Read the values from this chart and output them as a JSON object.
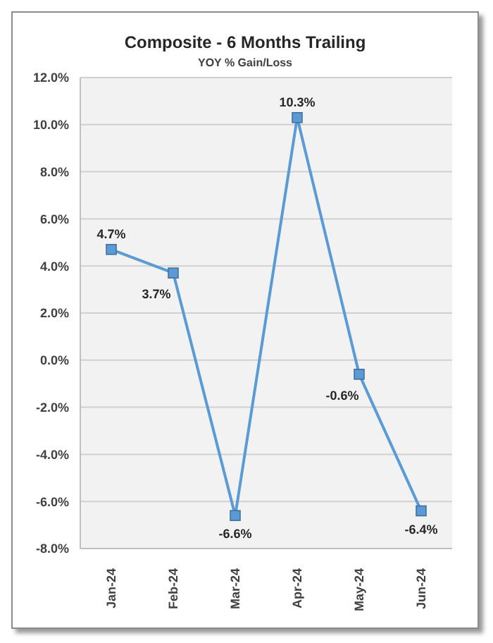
{
  "chart_data": {
    "type": "line",
    "title": "Composite - 6 Months Trailing",
    "subtitle": "YOY % Gain/Loss",
    "categories": [
      "Jan-24",
      "Feb-24",
      "Mar-24",
      "Apr-24",
      "May-24",
      "Jun-24"
    ],
    "series": [
      {
        "color": "#5b9bd5",
        "values": [
          4.7,
          3.7,
          -6.6,
          10.3,
          -0.6,
          -6.4
        ],
        "value_labels": [
          "4.7%",
          "3.7%",
          "-6.6%",
          "10.3%",
          "-0.6%",
          "-6.4%"
        ]
      }
    ],
    "ylim": [
      -8,
      12
    ],
    "yticks": [
      {
        "value": -8,
        "label": "-8.0%"
      },
      {
        "value": -6,
        "label": "-6.0%"
      },
      {
        "value": -4,
        "label": "-4.0%"
      },
      {
        "value": -2,
        "label": "-2.0%"
      },
      {
        "value": 0,
        "label": "0.0%"
      },
      {
        "value": 2,
        "label": "2.0%"
      },
      {
        "value": 4,
        "label": "4.0%"
      },
      {
        "value": 6,
        "label": "6.0%"
      },
      {
        "value": 8,
        "label": "8.0%"
      },
      {
        "value": 10,
        "label": "10.0%"
      },
      {
        "value": 12,
        "label": "12.0%"
      }
    ],
    "grid": "y",
    "marker": "square",
    "line_style": "solid",
    "legend": false
  }
}
